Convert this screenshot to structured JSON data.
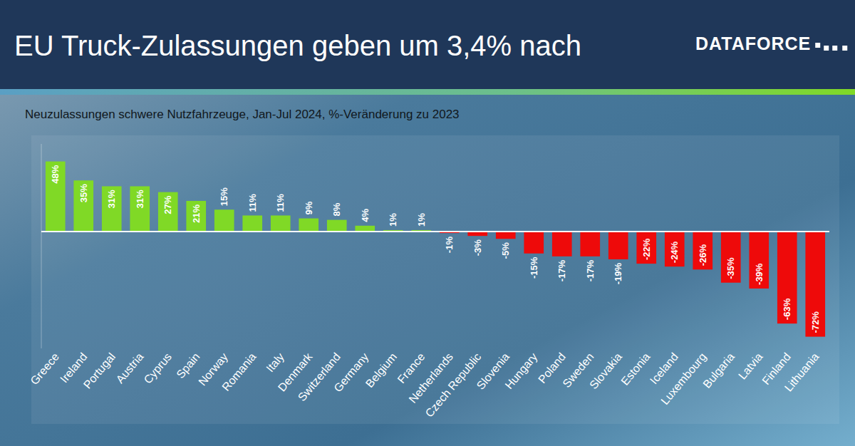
{
  "chart_data": {
    "type": "bar",
    "title": "EU Truck-Zulassungen geben um 3,4% nach",
    "subtitle": "Neuzulassungen schwere Nutzfahrzeuge, Jan-Jul 2024, %-Veränderung zu 2023",
    "annotations": [
      "DATAFORCE"
    ],
    "categories": [
      "Greece",
      "Ireland",
      "Portugal",
      "Austria",
      "Cyprus",
      "Spain",
      "Norway",
      "Romania",
      "Italy",
      "Denmark",
      "Switzerland",
      "Germany",
      "Belgium",
      "France",
      "Netherlands",
      "Czech Republic",
      "Slovenia",
      "Hungary",
      "Poland",
      "Sweden",
      "Slovakia",
      "Estonia",
      "Iceland",
      "Luxembourg",
      "Bulgaria",
      "Latvia",
      "Finland",
      "Lithuania"
    ],
    "values": [
      48,
      35,
      31,
      31,
      27,
      21,
      15,
      11,
      11,
      9,
      8,
      4,
      1,
      1,
      -1,
      -3,
      -5,
      -15,
      -17,
      -17,
      -19,
      -22,
      -24,
      -26,
      -35,
      -39,
      -63,
      -72
    ],
    "value_labels": [
      "48%",
      "35%",
      "31%",
      "31%",
      "27%",
      "21%",
      "15%",
      "11%",
      "11%",
      "9%",
      "8%",
      "4%",
      "1%",
      "1%",
      "-1%",
      "-3%",
      "-5%",
      "-15%",
      "-17%",
      "-17%",
      "-19%",
      "-22%",
      "-24%",
      "-26%",
      "-35%",
      "-39%",
      "-63%",
      "-72%"
    ],
    "colors": [
      "#80d926",
      "#80d926",
      "#80d926",
      "#80d926",
      "#80d926",
      "#80d926",
      "#80d926",
      "#80d926",
      "#80d926",
      "#80d926",
      "#80d926",
      "#80d926",
      "#80d926",
      "#80d926",
      "#ee0a0a",
      "#ee0a0a",
      "#ee0a0a",
      "#ee0a0a",
      "#ee0a0a",
      "#ee0a0a",
      "#ee0a0a",
      "#ee0a0a",
      "#ee0a0a",
      "#ee0a0a",
      "#ee0a0a",
      "#ee0a0a",
      "#ee0a0a",
      "#ee0a0a"
    ],
    "ylim": [
      -80,
      60
    ],
    "yticks": [
      0
    ],
    "grid": false,
    "data_labels": true,
    "tick_labels": "x"
  }
}
